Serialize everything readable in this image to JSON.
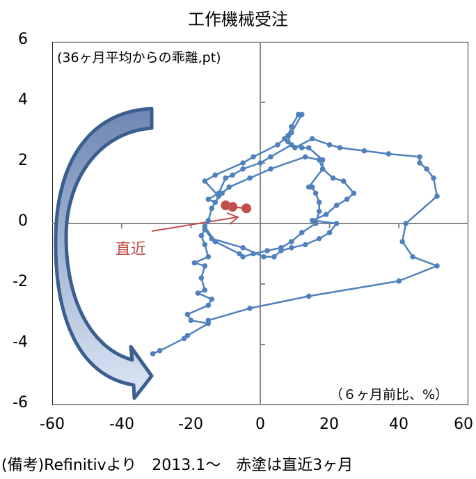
{
  "chart_data": {
    "type": "scatter",
    "title": "工作機械受注",
    "xlabel": "（６ヶ月前比、%）",
    "ylabel": "(36ヶ月平均からの乖離,pt)",
    "xlim": [
      -60,
      60
    ],
    "ylim": [
      -6,
      6
    ],
    "x_ticks": [
      "-60",
      "-40",
      "-20",
      "0",
      "20",
      "40",
      "60"
    ],
    "y_ticks": [
      "6",
      "4",
      "2",
      "0",
      "-2",
      "-4",
      "-6"
    ],
    "grid": false,
    "series": [
      {
        "name": "工作機械受注 (2013.1～)",
        "color": "#4f81bd",
        "points": [
          [
            -31,
            -4.3
          ],
          [
            -29,
            -4.2
          ],
          [
            -22,
            -3.8
          ],
          [
            -21,
            -3.7
          ],
          [
            -15,
            -3.3
          ],
          [
            -20,
            -3.2
          ],
          [
            -21,
            -3.0
          ],
          [
            -15,
            -2.7
          ],
          [
            -14,
            -2.5
          ],
          [
            -18,
            -2.3
          ],
          [
            -16,
            -2.2
          ],
          [
            -17,
            -1.8
          ],
          [
            -16,
            -1.4
          ],
          [
            -19,
            -1.3
          ],
          [
            -15,
            -1.1
          ],
          [
            -16,
            -0.7
          ],
          [
            -17,
            -0.4
          ],
          [
            -16,
            -0.2
          ],
          [
            -14,
            -0.5
          ],
          [
            -5,
            -0.8
          ],
          [
            1,
            -1.1
          ],
          [
            4,
            -1.1
          ],
          [
            6,
            -0.9
          ],
          [
            9,
            -0.8
          ],
          [
            13,
            -0.7
          ],
          [
            17,
            -0.5
          ],
          [
            20,
            -0.3
          ],
          [
            22,
            0.0
          ],
          [
            15,
            0.1
          ],
          [
            19,
            0.3
          ],
          [
            22,
            0.6
          ],
          [
            25,
            0.8
          ],
          [
            27,
            1.0
          ],
          [
            24,
            1.4
          ],
          [
            21,
            1.5
          ],
          [
            18,
            1.8
          ],
          [
            18,
            2.1
          ],
          [
            14,
            2.5
          ],
          [
            12,
            2.5
          ],
          [
            9,
            2.6
          ],
          [
            3,
            2.2
          ],
          [
            0,
            2.0
          ],
          [
            -5,
            1.8
          ],
          [
            -8,
            1.6
          ],
          [
            -10,
            1.5
          ],
          [
            -12,
            1.0
          ],
          [
            -15,
            0.8
          ],
          [
            -13,
            0.7
          ],
          [
            -11,
            1.0
          ],
          [
            -9,
            1.2
          ],
          [
            -3,
            1.5
          ],
          [
            3,
            1.8
          ],
          [
            13,
            2.2
          ],
          [
            17,
            2.1
          ],
          [
            18,
            1.8
          ],
          [
            14,
            1.2
          ],
          [
            15,
            1.2
          ],
          [
            16,
            1.0
          ],
          [
            17,
            0.7
          ],
          [
            17,
            0.4
          ],
          [
            16,
            0.0
          ],
          [
            12,
            -0.3
          ],
          [
            9,
            -0.6
          ],
          [
            6,
            -0.8
          ],
          [
            2,
            -0.9
          ],
          [
            -2,
            -1.0
          ],
          [
            -5,
            -1.1
          ],
          [
            -6,
            -1.0
          ],
          [
            -13,
            -0.6
          ],
          [
            -16,
            -0.1
          ],
          [
            -15,
            0.1
          ],
          [
            -14,
            0.5
          ],
          [
            -12,
            0.9
          ],
          [
            -16,
            1.4
          ],
          [
            -13,
            1.6
          ],
          [
            -5,
            2.0
          ],
          [
            -2,
            2.2
          ],
          [
            5,
            2.6
          ],
          [
            7,
            2.8
          ],
          [
            8,
            2.9
          ],
          [
            9,
            3.2
          ],
          [
            11,
            3.6
          ],
          [
            12,
            3.6
          ],
          [
            9,
            3.0
          ],
          [
            8,
            2.7
          ],
          [
            10,
            2.5
          ],
          [
            15,
            2.8
          ],
          [
            20,
            2.6
          ],
          [
            23,
            2.5
          ],
          [
            30,
            2.4
          ],
          [
            37,
            2.3
          ],
          [
            46,
            2.2
          ],
          [
            46,
            2.0
          ],
          [
            48,
            1.8
          ],
          [
            50,
            1.5
          ],
          [
            51,
            0.9
          ],
          [
            42,
            0.0
          ],
          [
            41,
            -0.6
          ],
          [
            44,
            -1.1
          ],
          [
            51,
            -1.4
          ],
          [
            40,
            -1.9
          ],
          [
            14,
            -2.4
          ],
          [
            -3,
            -2.8
          ],
          [
            -15,
            -3.2
          ]
        ]
      },
      {
        "name": "直近3ヶ月 (赤塗)",
        "color": "#c0504d",
        "points": [
          [
            -10,
            0.6
          ],
          [
            -8,
            0.55
          ],
          [
            -4,
            0.5
          ]
        ]
      }
    ],
    "annotations": [
      {
        "text": "直近",
        "color": "#c0504d",
        "arrow_from": [
          -40,
          -0.7
        ],
        "arrow_to": [
          -6,
          0.3
        ]
      },
      {
        "type": "curved-arrow",
        "description": "clockwise rotation from upper-left (-30,3.6) to lower-left (-30,-4.9)",
        "color": "#3a5f8f"
      }
    ]
  },
  "footer": "(備考)Refinitivより　2013.1～　赤塗は直近3ヶ月",
  "note": "直近"
}
